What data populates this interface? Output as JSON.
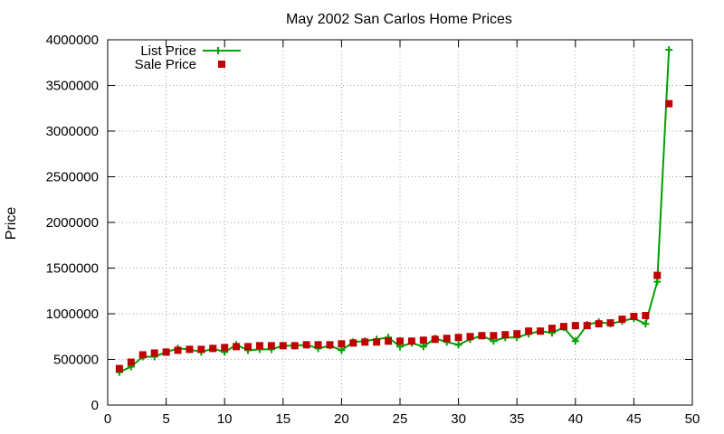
{
  "chart_data": {
    "type": "line",
    "title": "May 2002 San Carlos Home Prices",
    "xlabel": "",
    "ylabel": "Price",
    "xlim": [
      0,
      50
    ],
    "ylim": [
      0,
      4000000
    ],
    "x_ticks": [
      0,
      5,
      10,
      15,
      20,
      25,
      30,
      35,
      40,
      45,
      50
    ],
    "y_ticks": [
      0,
      500000,
      1000000,
      1500000,
      2000000,
      2500000,
      3000000,
      3500000,
      4000000
    ],
    "grid": true,
    "legend_position": "top-left",
    "series": [
      {
        "name": "List Price",
        "style": "line-plus",
        "color": "#00a000",
        "x": [
          1,
          2,
          3,
          4,
          5,
          6,
          7,
          8,
          9,
          10,
          11,
          12,
          13,
          14,
          15,
          16,
          17,
          18,
          19,
          20,
          21,
          22,
          23,
          24,
          25,
          26,
          27,
          28,
          29,
          30,
          31,
          32,
          33,
          34,
          35,
          36,
          37,
          38,
          39,
          40,
          41,
          42,
          43,
          44,
          45,
          46,
          47,
          48
        ],
        "values": [
          360000,
          420000,
          530000,
          530000,
          580000,
          620000,
          610000,
          580000,
          620000,
          580000,
          660000,
          600000,
          610000,
          610000,
          650000,
          650000,
          660000,
          620000,
          650000,
          600000,
          690000,
          700000,
          720000,
          740000,
          640000,
          680000,
          640000,
          730000,
          690000,
          660000,
          720000,
          760000,
          700000,
          740000,
          740000,
          780000,
          810000,
          790000,
          850000,
          700000,
          880000,
          910000,
          890000,
          920000,
          950000,
          890000,
          1350000,
          3890000
        ]
      },
      {
        "name": "Sale Price",
        "style": "square-points",
        "color": "#c00000",
        "x": [
          1,
          2,
          3,
          4,
          5,
          6,
          7,
          8,
          9,
          10,
          11,
          12,
          13,
          14,
          15,
          16,
          17,
          18,
          19,
          20,
          21,
          22,
          23,
          24,
          25,
          26,
          27,
          28,
          29,
          30,
          31,
          32,
          33,
          34,
          35,
          36,
          37,
          38,
          39,
          40,
          41,
          42,
          43,
          44,
          45,
          46,
          47,
          48
        ],
        "values": [
          400000,
          470000,
          550000,
          570000,
          580000,
          600000,
          610000,
          610000,
          620000,
          630000,
          640000,
          640000,
          650000,
          650000,
          650000,
          650000,
          660000,
          660000,
          660000,
          670000,
          680000,
          690000,
          690000,
          700000,
          700000,
          700000,
          710000,
          720000,
          730000,
          740000,
          750000,
          760000,
          760000,
          770000,
          780000,
          810000,
          810000,
          840000,
          860000,
          870000,
          870000,
          890000,
          900000,
          940000,
          970000,
          980000,
          1420000,
          3300000
        ]
      }
    ]
  }
}
